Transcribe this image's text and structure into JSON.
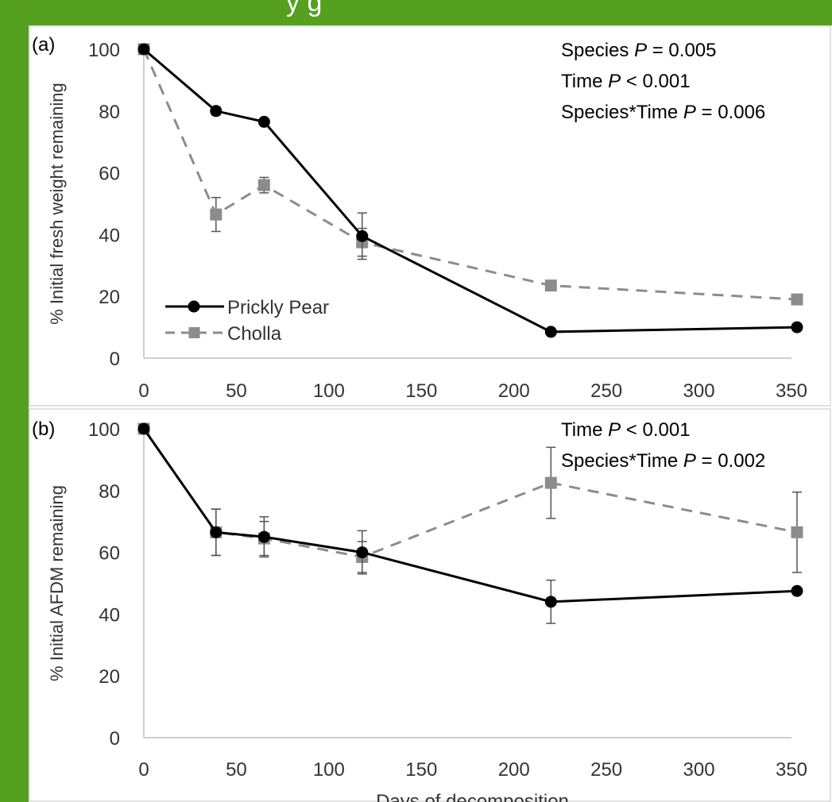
{
  "header": {
    "title_visible_fragment": "y  g"
  },
  "colors": {
    "background": "#55a01e",
    "panel": "#ffffff",
    "prickly_pear": "#000000",
    "cholla": "#8c8c8c",
    "axis": "#bfbfbf",
    "text": "#000000",
    "tick_text": "#333333"
  },
  "chart_data": [
    {
      "type": "line",
      "panel_label": "(a)",
      "ylabel": "% Initial fresh weight remaining",
      "xlabel": "",
      "xlim": [
        0,
        350
      ],
      "ylim": [
        0,
        100
      ],
      "xticks": [
        "0",
        "50",
        "100",
        "150",
        "200",
        "250",
        "300",
        "350"
      ],
      "yticks": [
        "0",
        "20",
        "40",
        "60",
        "80",
        "100"
      ],
      "stats": [
        {
          "label": "Species ",
          "italic": "P",
          "rest": " = 0.005"
        },
        {
          "label": "Time ",
          "italic": "P",
          "rest": " < 0.001"
        },
        {
          "label": "Species*Time ",
          "italic": "P",
          "rest": " = 0.006"
        }
      ],
      "legend": {
        "placement": "bottom-left",
        "entries": [
          "Prickly Pear",
          "Cholla"
        ]
      },
      "series": [
        {
          "name": "Prickly Pear",
          "marker": "circle",
          "dash": "solid",
          "x": [
            0,
            39,
            65,
            118,
            220,
            353
          ],
          "y": [
            100,
            80,
            76.5,
            39.5,
            8.5,
            10
          ],
          "err": [
            0,
            1.3,
            0,
            7.5,
            0,
            0
          ]
        },
        {
          "name": "Cholla",
          "marker": "square",
          "dash": "dashed",
          "x": [
            0,
            39,
            65,
            118,
            220,
            353
          ],
          "y": [
            100,
            46.5,
            56,
            37.5,
            23.5,
            19
          ],
          "err": [
            0,
            5.5,
            2.5,
            4.5,
            0,
            0
          ]
        }
      ]
    },
    {
      "type": "line",
      "panel_label": "(b)",
      "ylabel": "% Initial AFDM remaining",
      "xlabel": "Days of decomposition",
      "xlim": [
        0,
        350
      ],
      "ylim": [
        0,
        100
      ],
      "xticks": [
        "0",
        "50",
        "100",
        "150",
        "200",
        "250",
        "300",
        "350"
      ],
      "yticks": [
        "0",
        "20",
        "40",
        "60",
        "80",
        "100"
      ],
      "stats": [
        {
          "label": "Time ",
          "italic": "P",
          "rest": " < 0.001"
        },
        {
          "label": "Species*Time ",
          "italic": "P",
          "rest": " = 0.002"
        }
      ],
      "legend": null,
      "series": [
        {
          "name": "Prickly Pear",
          "marker": "circle",
          "dash": "solid",
          "x": [
            0,
            39,
            65,
            118,
            220,
            353
          ],
          "y": [
            100,
            66.5,
            65,
            60,
            44,
            47.5
          ],
          "err": [
            0,
            7.5,
            6.5,
            7,
            7,
            0
          ]
        },
        {
          "name": "Cholla",
          "marker": "square",
          "dash": "dashed",
          "x": [
            0,
            39,
            65,
            118,
            220,
            353
          ],
          "y": [
            100,
            66.5,
            64.5,
            58.5,
            82.5,
            66.5
          ],
          "err": [
            0,
            7.5,
            5.5,
            5,
            11.5,
            13
          ]
        }
      ]
    }
  ]
}
